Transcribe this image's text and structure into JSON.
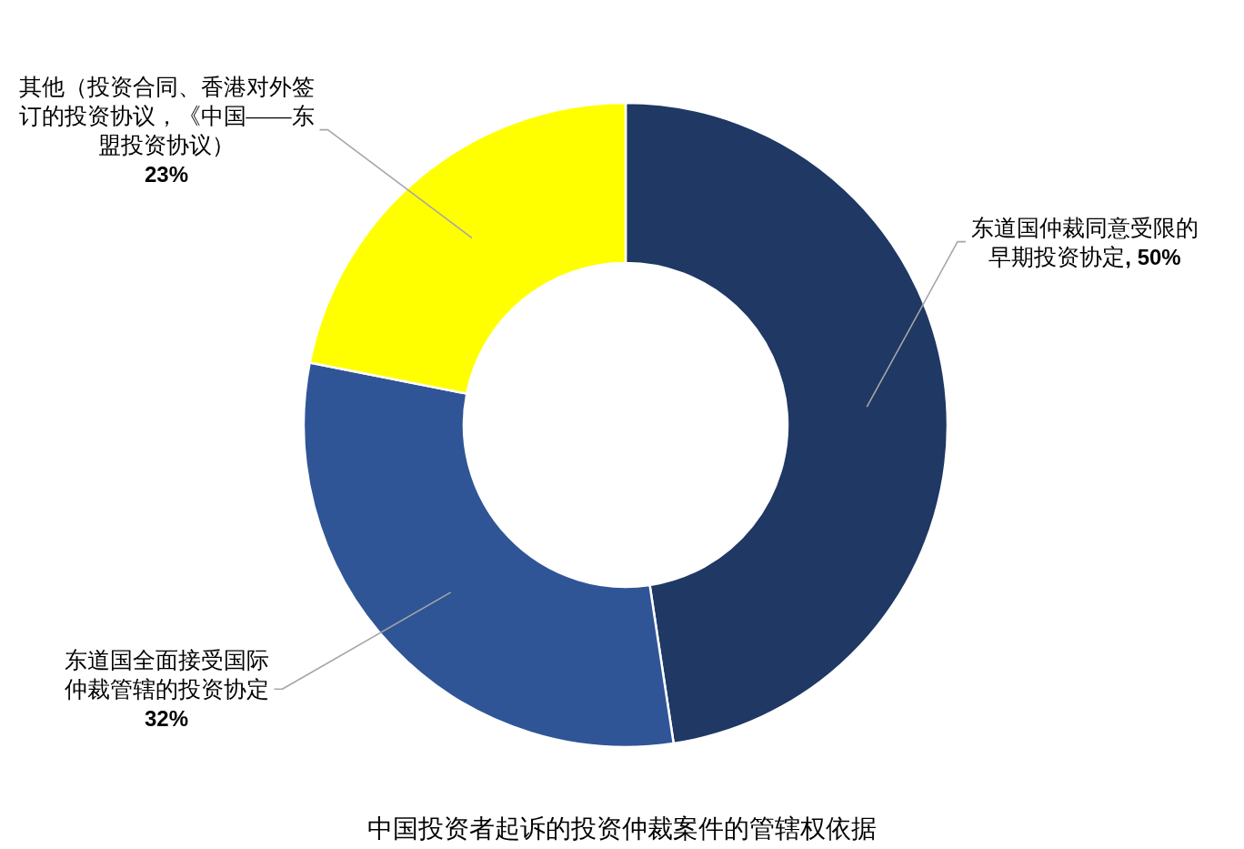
{
  "chart_data": {
    "type": "donut",
    "title": "中国投资者起诉的投资仲裁案件的管辖权依据",
    "categories": [
      "东道国仲裁同意受限的早期投资协定",
      "东道国全面接受国际仲裁管辖的投资协定",
      "其他（投资合同、香港对外签订的投资协议，《中国——东盟投资协议）"
    ],
    "values": [
      50,
      32,
      23
    ],
    "colors": [
      "#1f3864",
      "#2f5597",
      "#ffff00"
    ],
    "value_labels": [
      ", 50%",
      "32%",
      "23%"
    ]
  }
}
